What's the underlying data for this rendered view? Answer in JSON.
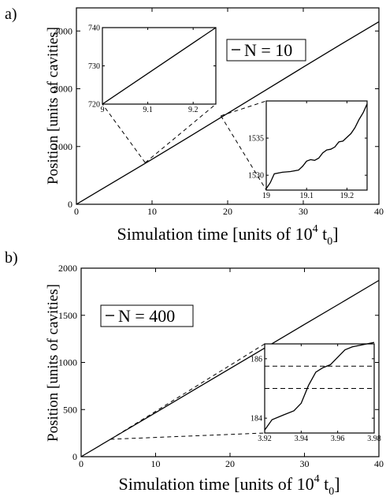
{
  "figure": {
    "panels": [
      {
        "label": "a)",
        "title": "",
        "xlabel_main": "Simulation time [units of 10",
        "xlabel_exp": "4",
        "xlabel_t": " t",
        "xlabel_sub": "0",
        "xlabel_end": "]",
        "ylabel": "Position [units of cavities]",
        "legend": "N = 10"
      },
      {
        "label": "b)",
        "title": "",
        "xlabel_main": "Simulation time [units of 10",
        "xlabel_exp": "4",
        "xlabel_t": " t",
        "xlabel_sub": "0",
        "xlabel_end": "]",
        "ylabel": "Position [units of cavities]",
        "legend": "N = 400"
      }
    ]
  },
  "chart_data": [
    {
      "id": "a-main",
      "type": "line",
      "panel_label": "a)",
      "xlabel": "Simulation time [units of 10^4 t0]",
      "ylabel": "Position [units of cavities]",
      "xlim": [
        0,
        40
      ],
      "ylim": [
        0,
        3400
      ],
      "xticks": [
        0,
        10,
        20,
        30,
        40
      ],
      "yticks": [
        0,
        1000,
        2000,
        3000
      ],
      "grid": false,
      "legend_position": "top-right",
      "series": [
        {
          "name": "N = 10",
          "x": [
            0,
            5,
            10,
            15,
            20,
            25,
            30,
            35,
            40
          ],
          "y": [
            0,
            390,
            780,
            1175,
            1575,
            1975,
            2375,
            2770,
            3160
          ]
        }
      ],
      "annotations": [
        {
          "type": "zoom",
          "from_x": 9.1,
          "from_y": 720,
          "to_inset": "a-inset-left"
        },
        {
          "type": "zoom",
          "from_x": 19.1,
          "from_y": 1532,
          "to_inset": "a-inset-right"
        }
      ]
    },
    {
      "id": "a-inset-left",
      "type": "line",
      "xlim": [
        9,
        9.25
      ],
      "ylim": [
        720,
        740
      ],
      "xticks": [
        9,
        9.1,
        9.2
      ],
      "yticks": [
        720,
        730,
        740
      ],
      "series": [
        {
          "x": [
            9.0,
            9.25
          ],
          "y": [
            720,
            740
          ]
        }
      ]
    },
    {
      "id": "a-inset-right",
      "type": "line",
      "xlim": [
        19,
        19.25
      ],
      "ylim": [
        1528,
        1540
      ],
      "xticks": [
        19,
        19.1,
        19.2
      ],
      "yticks": [
        1530,
        1535
      ],
      "series": [
        {
          "x": [
            19.0,
            19.01,
            19.02,
            19.04,
            19.06,
            19.08,
            19.09,
            19.1,
            19.11,
            19.12,
            19.13,
            19.14,
            19.15,
            19.16,
            19.17,
            19.18,
            19.19,
            19.2,
            19.21,
            19.22,
            19.23,
            19.24,
            19.25
          ],
          "y": [
            1528.2,
            1529.0,
            1530.2,
            1530.4,
            1530.5,
            1530.7,
            1531.2,
            1531.9,
            1532.1,
            1532.0,
            1532.3,
            1533.0,
            1533.4,
            1533.5,
            1533.8,
            1534.5,
            1534.6,
            1535.1,
            1535.6,
            1536.4,
            1537.5,
            1538.4,
            1539.6
          ]
        }
      ]
    },
    {
      "id": "b-main",
      "type": "line",
      "panel_label": "b)",
      "xlabel": "Simulation time [units of 10^4 t0]",
      "ylabel": "Position [units of cavities]",
      "xlim": [
        0,
        40
      ],
      "ylim": [
        0,
        2000
      ],
      "xticks": [
        0,
        10,
        20,
        30,
        40
      ],
      "yticks": [
        0,
        500,
        1000,
        1500,
        2000
      ],
      "grid": false,
      "legend_position": "top-left",
      "series": [
        {
          "name": "N = 400",
          "x": [
            0,
            5,
            10,
            15,
            20,
            25,
            30,
            35,
            40
          ],
          "y": [
            0,
            234,
            467,
            701,
            935,
            1169,
            1403,
            1636,
            1870
          ]
        }
      ],
      "annotations": [
        {
          "type": "zoom",
          "from_x": 3.95,
          "from_y": 185,
          "to_inset": "b-inset"
        }
      ]
    },
    {
      "id": "b-inset",
      "type": "line",
      "xlim": [
        3.92,
        3.98
      ],
      "ylim": [
        183.5,
        186.5
      ],
      "xticks": [
        3.92,
        3.94,
        3.96,
        3.98
      ],
      "yticks": [
        184,
        186
      ],
      "hlines_dashed": [
        185.0,
        185.75
      ],
      "series": [
        {
          "x": [
            3.92,
            3.924,
            3.93,
            3.936,
            3.94,
            3.944,
            3.948,
            3.952,
            3.956,
            3.96,
            3.964,
            3.968,
            3.972,
            3.976,
            3.98
          ],
          "y": [
            183.6,
            183.95,
            184.1,
            184.25,
            184.5,
            185.1,
            185.55,
            185.7,
            185.8,
            186.05,
            186.3,
            186.4,
            186.45,
            186.5,
            186.55
          ]
        }
      ]
    }
  ]
}
